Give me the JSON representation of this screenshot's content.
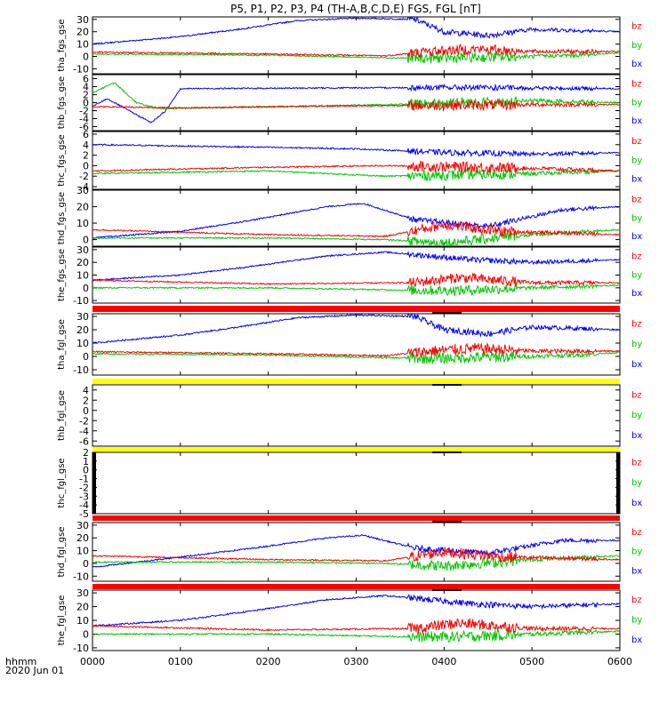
{
  "title": "P5, P1, P2, P3, P4 (TH-A,B,C,D,E) FGS, FGL [nT]",
  "colors": {
    "bz": "#ff0000",
    "by": "#00c800",
    "bx": "#0000ff",
    "yellow": "#ffff00",
    "red": "#ff0000",
    "black": "#000000"
  },
  "xaxis": {
    "ticks": [
      "0000",
      "0100",
      "0200",
      "0300",
      "0400",
      "0500",
      "0600"
    ],
    "label_line1": "hhmm",
    "label_line2": "2020 Jun 01",
    "range_minutes": [
      0,
      360
    ]
  },
  "chart_data": {
    "type": "line",
    "x_unit": "hhmm",
    "xlim": [
      0,
      360
    ],
    "panels": [
      {
        "ylabel": "tha_fgs_gse",
        "yticks": [
          30,
          20,
          10,
          0,
          -10
        ],
        "ylim": [
          -14,
          32
        ],
        "series": [
          {
            "name": "bz",
            "profile": [
              [
                0,
                3.5
              ],
              [
                120,
                2
              ],
              [
                200,
                0.5
              ],
              [
                230,
                4
              ],
              [
                260,
                6
              ],
              [
                300,
                4
              ],
              [
                360,
                4
              ]
            ]
          },
          {
            "name": "by",
            "profile": [
              [
                0,
                2
              ],
              [
                120,
                1
              ],
              [
                200,
                -1
              ],
              [
                230,
                -1.5
              ],
              [
                300,
                0
              ],
              [
                330,
                1
              ],
              [
                360,
                3
              ]
            ]
          },
          {
            "name": "bx",
            "profile": [
              [
                0,
                10
              ],
              [
                60,
                16
              ],
              [
                100,
                22
              ],
              [
                140,
                29
              ],
              [
                180,
                31
              ],
              [
                220,
                30
              ],
              [
                240,
                20
              ],
              [
                270,
                17
              ],
              [
                300,
                22
              ],
              [
                360,
                20
              ]
            ]
          }
        ]
      },
      {
        "ylabel": "thb_fgs_gse",
        "yticks": [
          6,
          4,
          2,
          0,
          -2,
          -4,
          -6
        ],
        "ylim": [
          -7,
          7
        ],
        "series": [
          {
            "name": "bz",
            "profile": [
              [
                0,
                -1
              ],
              [
                60,
                -1.3
              ],
              [
                180,
                -0.8
              ],
              [
                300,
                -0.5
              ],
              [
                360,
                -0.5
              ]
            ]
          },
          {
            "name": "by",
            "profile": [
              [
                0,
                2.5
              ],
              [
                15,
                5
              ],
              [
                30,
                0
              ],
              [
                45,
                -1.5
              ],
              [
                120,
                -1
              ],
              [
                230,
                -0.3
              ],
              [
                300,
                0.5
              ],
              [
                360,
                0
              ]
            ]
          },
          {
            "name": "bx",
            "profile": [
              [
                0,
                -1
              ],
              [
                10,
                1
              ],
              [
                25,
                -2
              ],
              [
                40,
                -5
              ],
              [
                50,
                -2
              ],
              [
                60,
                3.5
              ],
              [
                240,
                3.8
              ],
              [
                360,
                3.5
              ]
            ]
          }
        ]
      },
      {
        "ylabel": "thc_fgs_gse",
        "yticks": [
          6,
          4,
          2,
          0,
          -2,
          -4
        ],
        "ylim": [
          -4.5,
          6.5
        ],
        "series": [
          {
            "name": "bz",
            "profile": [
              [
                0,
                -1
              ],
              [
                120,
                -0.3
              ],
              [
                200,
                0
              ],
              [
                300,
                -0.5
              ],
              [
                360,
                -1
              ]
            ]
          },
          {
            "name": "by",
            "profile": [
              [
                0,
                -1.5
              ],
              [
                120,
                -1
              ],
              [
                200,
                -2
              ],
              [
                300,
                -1.5
              ],
              [
                360,
                -1
              ]
            ]
          },
          {
            "name": "bx",
            "profile": [
              [
                0,
                4
              ],
              [
                120,
                3.5
              ],
              [
                180,
                3.2
              ],
              [
                240,
                2.5
              ],
              [
                300,
                2.2
              ],
              [
                360,
                2.5
              ]
            ]
          }
        ]
      },
      {
        "ylabel": "thd_fgs_gse",
        "yticks": [
          30,
          20,
          10,
          0,
          -10
        ],
        "ylim": [
          -4,
          30
        ],
        "series": [
          {
            "name": "bz",
            "profile": [
              [
                0,
                6
              ],
              [
                120,
                3
              ],
              [
                200,
                2
              ],
              [
                240,
                9
              ],
              [
                280,
                5
              ],
              [
                360,
                3
              ]
            ]
          },
          {
            "name": "by",
            "profile": [
              [
                0,
                1
              ],
              [
                120,
                1
              ],
              [
                200,
                0
              ],
              [
                240,
                -2
              ],
              [
                300,
                3
              ],
              [
                360,
                6
              ]
            ]
          },
          {
            "name": "bx",
            "profile": [
              [
                0,
                1
              ],
              [
                60,
                5
              ],
              [
                110,
                12
              ],
              [
                160,
                20
              ],
              [
                185,
                22
              ],
              [
                220,
                12
              ],
              [
                270,
                8
              ],
              [
                320,
                18
              ],
              [
                360,
                20
              ]
            ]
          }
        ]
      },
      {
        "ylabel": "the_fgs_gse",
        "yticks": [
          30,
          20,
          10,
          0,
          -10
        ],
        "ylim": [
          -12,
          32
        ],
        "series": [
          {
            "name": "bz",
            "profile": [
              [
                0,
                6
              ],
              [
                120,
                3
              ],
              [
                220,
                4
              ],
              [
                250,
                8
              ],
              [
                300,
                4
              ],
              [
                360,
                4
              ]
            ]
          },
          {
            "name": "by",
            "profile": [
              [
                0,
                0
              ],
              [
                120,
                0
              ],
              [
                220,
                -2
              ],
              [
                250,
                -2
              ],
              [
                300,
                0
              ],
              [
                360,
                2
              ]
            ]
          },
          {
            "name": "bx",
            "profile": [
              [
                0,
                6
              ],
              [
                60,
                10
              ],
              [
                110,
                17
              ],
              [
                160,
                25
              ],
              [
                200,
                28
              ],
              [
                260,
                22
              ],
              [
                300,
                20
              ],
              [
                360,
                22
              ]
            ]
          }
        ]
      },
      {
        "ylabel": "tha_fgl_gse",
        "yticks": [
          30,
          20,
          10,
          0,
          -10
        ],
        "ylim": [
          -14,
          32
        ],
        "series": [
          {
            "name": "bz",
            "profile": [
              [
                0,
                3.5
              ],
              [
                120,
                2
              ],
              [
                200,
                0.5
              ],
              [
                230,
                4
              ],
              [
                260,
                6
              ],
              [
                300,
                4
              ],
              [
                360,
                4
              ]
            ]
          },
          {
            "name": "by",
            "profile": [
              [
                0,
                2
              ],
              [
                120,
                1
              ],
              [
                200,
                -1
              ],
              [
                230,
                -1.5
              ],
              [
                300,
                0
              ],
              [
                330,
                1
              ],
              [
                360,
                3
              ]
            ]
          },
          {
            "name": "bx",
            "profile": [
              [
                0,
                10
              ],
              [
                60,
                16
              ],
              [
                100,
                22
              ],
              [
                140,
                29
              ],
              [
                180,
                31
              ],
              [
                220,
                30
              ],
              [
                240,
                20
              ],
              [
                270,
                17
              ],
              [
                300,
                22
              ],
              [
                360,
                20
              ]
            ]
          }
        ]
      },
      {
        "ylabel": "thb_fgl_gse",
        "yticks": [
          4,
          2,
          0,
          -2,
          -4,
          -6
        ],
        "ylim": [
          -7,
          5
        ],
        "series": []
      },
      {
        "ylabel": "thc_fgl_gse",
        "yticks": [
          2,
          1,
          0,
          -1,
          -2,
          -3,
          -4,
          -5
        ],
        "ylim": [
          -5,
          2
        ],
        "series": []
      },
      {
        "ylabel": "thd_fgl_gse",
        "yticks": [
          30,
          20,
          10,
          0,
          -10
        ],
        "ylim": [
          -14,
          32
        ],
        "series": [
          {
            "name": "bz",
            "profile": [
              [
                0,
                6
              ],
              [
                120,
                3
              ],
              [
                200,
                2
              ],
              [
                240,
                9
              ],
              [
                280,
                5
              ],
              [
                360,
                3
              ]
            ]
          },
          {
            "name": "by",
            "profile": [
              [
                0,
                1
              ],
              [
                120,
                1
              ],
              [
                200,
                0
              ],
              [
                240,
                -2
              ],
              [
                300,
                3
              ],
              [
                360,
                6
              ]
            ]
          },
          {
            "name": "bx",
            "profile": [
              [
                0,
                -3
              ],
              [
                60,
                5
              ],
              [
                110,
                12
              ],
              [
                160,
                20
              ],
              [
                185,
                22
              ],
              [
                220,
                12
              ],
              [
                270,
                8
              ],
              [
                320,
                18
              ],
              [
                360,
                18
              ]
            ]
          }
        ]
      },
      {
        "ylabel": "the_fgl_gse",
        "yticks": [
          30,
          20,
          10,
          0,
          -10
        ],
        "ylim": [
          -12,
          32
        ],
        "series": [
          {
            "name": "bz",
            "profile": [
              [
                0,
                6
              ],
              [
                120,
                3
              ],
              [
                220,
                4
              ],
              [
                250,
                8
              ],
              [
                300,
                4
              ],
              [
                360,
                4
              ]
            ]
          },
          {
            "name": "by",
            "profile": [
              [
                0,
                0
              ],
              [
                120,
                0
              ],
              [
                220,
                -2
              ],
              [
                250,
                -2
              ],
              [
                300,
                0
              ],
              [
                360,
                2
              ]
            ]
          },
          {
            "name": "bx",
            "profile": [
              [
                0,
                6
              ],
              [
                60,
                10
              ],
              [
                110,
                17
              ],
              [
                160,
                25
              ],
              [
                200,
                28
              ],
              [
                260,
                22
              ],
              [
                300,
                20
              ],
              [
                360,
                22
              ]
            ]
          }
        ]
      }
    ]
  }
}
